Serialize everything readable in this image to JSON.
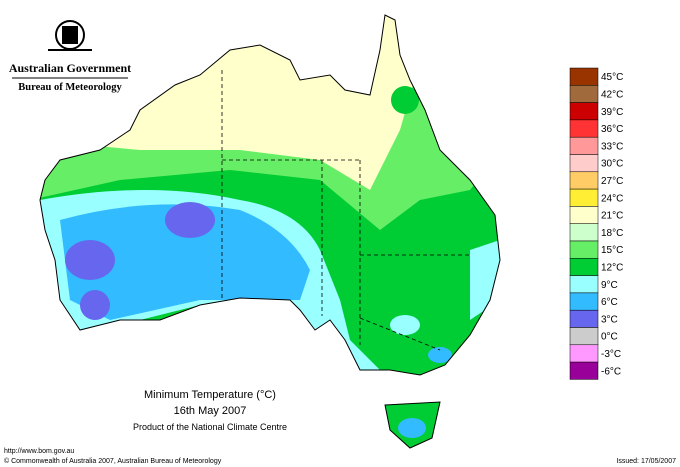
{
  "header": {
    "agency": "Australian Government",
    "bureau": "Bureau of Meteorology"
  },
  "map": {
    "title": "Minimum Temperature (°C)",
    "date": "16th May 2007",
    "product": "Product of the National Climate Centre"
  },
  "legend": [
    {
      "label": "45°C",
      "color": "#993300"
    },
    {
      "label": "42°C",
      "color": "#a06a3c"
    },
    {
      "label": "39°C",
      "color": "#cc0000"
    },
    {
      "label": "36°C",
      "color": "#ff3333"
    },
    {
      "label": "33°C",
      "color": "#ff9999"
    },
    {
      "label": "30°C",
      "color": "#ffcccc"
    },
    {
      "label": "27°C",
      "color": "#ffcc66"
    },
    {
      "label": "24°C",
      "color": "#ffee33"
    },
    {
      "label": "21°C",
      "color": "#ffffcc"
    },
    {
      "label": "18°C",
      "color": "#ccffcc"
    },
    {
      "label": "15°C",
      "color": "#66ee66"
    },
    {
      "label": "12°C",
      "color": "#00cc33"
    },
    {
      "label": "9°C",
      "color": "#99ffff"
    },
    {
      "label": "6°C",
      "color": "#33bbff"
    },
    {
      "label": "3°C",
      "color": "#6666ee"
    },
    {
      "label": "0°C",
      "color": "#cccccc"
    },
    {
      "label": "-3°C",
      "color": "#ff99ff"
    },
    {
      "label": "-6°C",
      "color": "#990099"
    }
  ],
  "footer": {
    "url": "http://www.bom.gov.au",
    "copyright": "© Commonwealth of Australia 2007, Australian Bureau of Meteorology",
    "issued": "Issued: 17/05/2007"
  }
}
